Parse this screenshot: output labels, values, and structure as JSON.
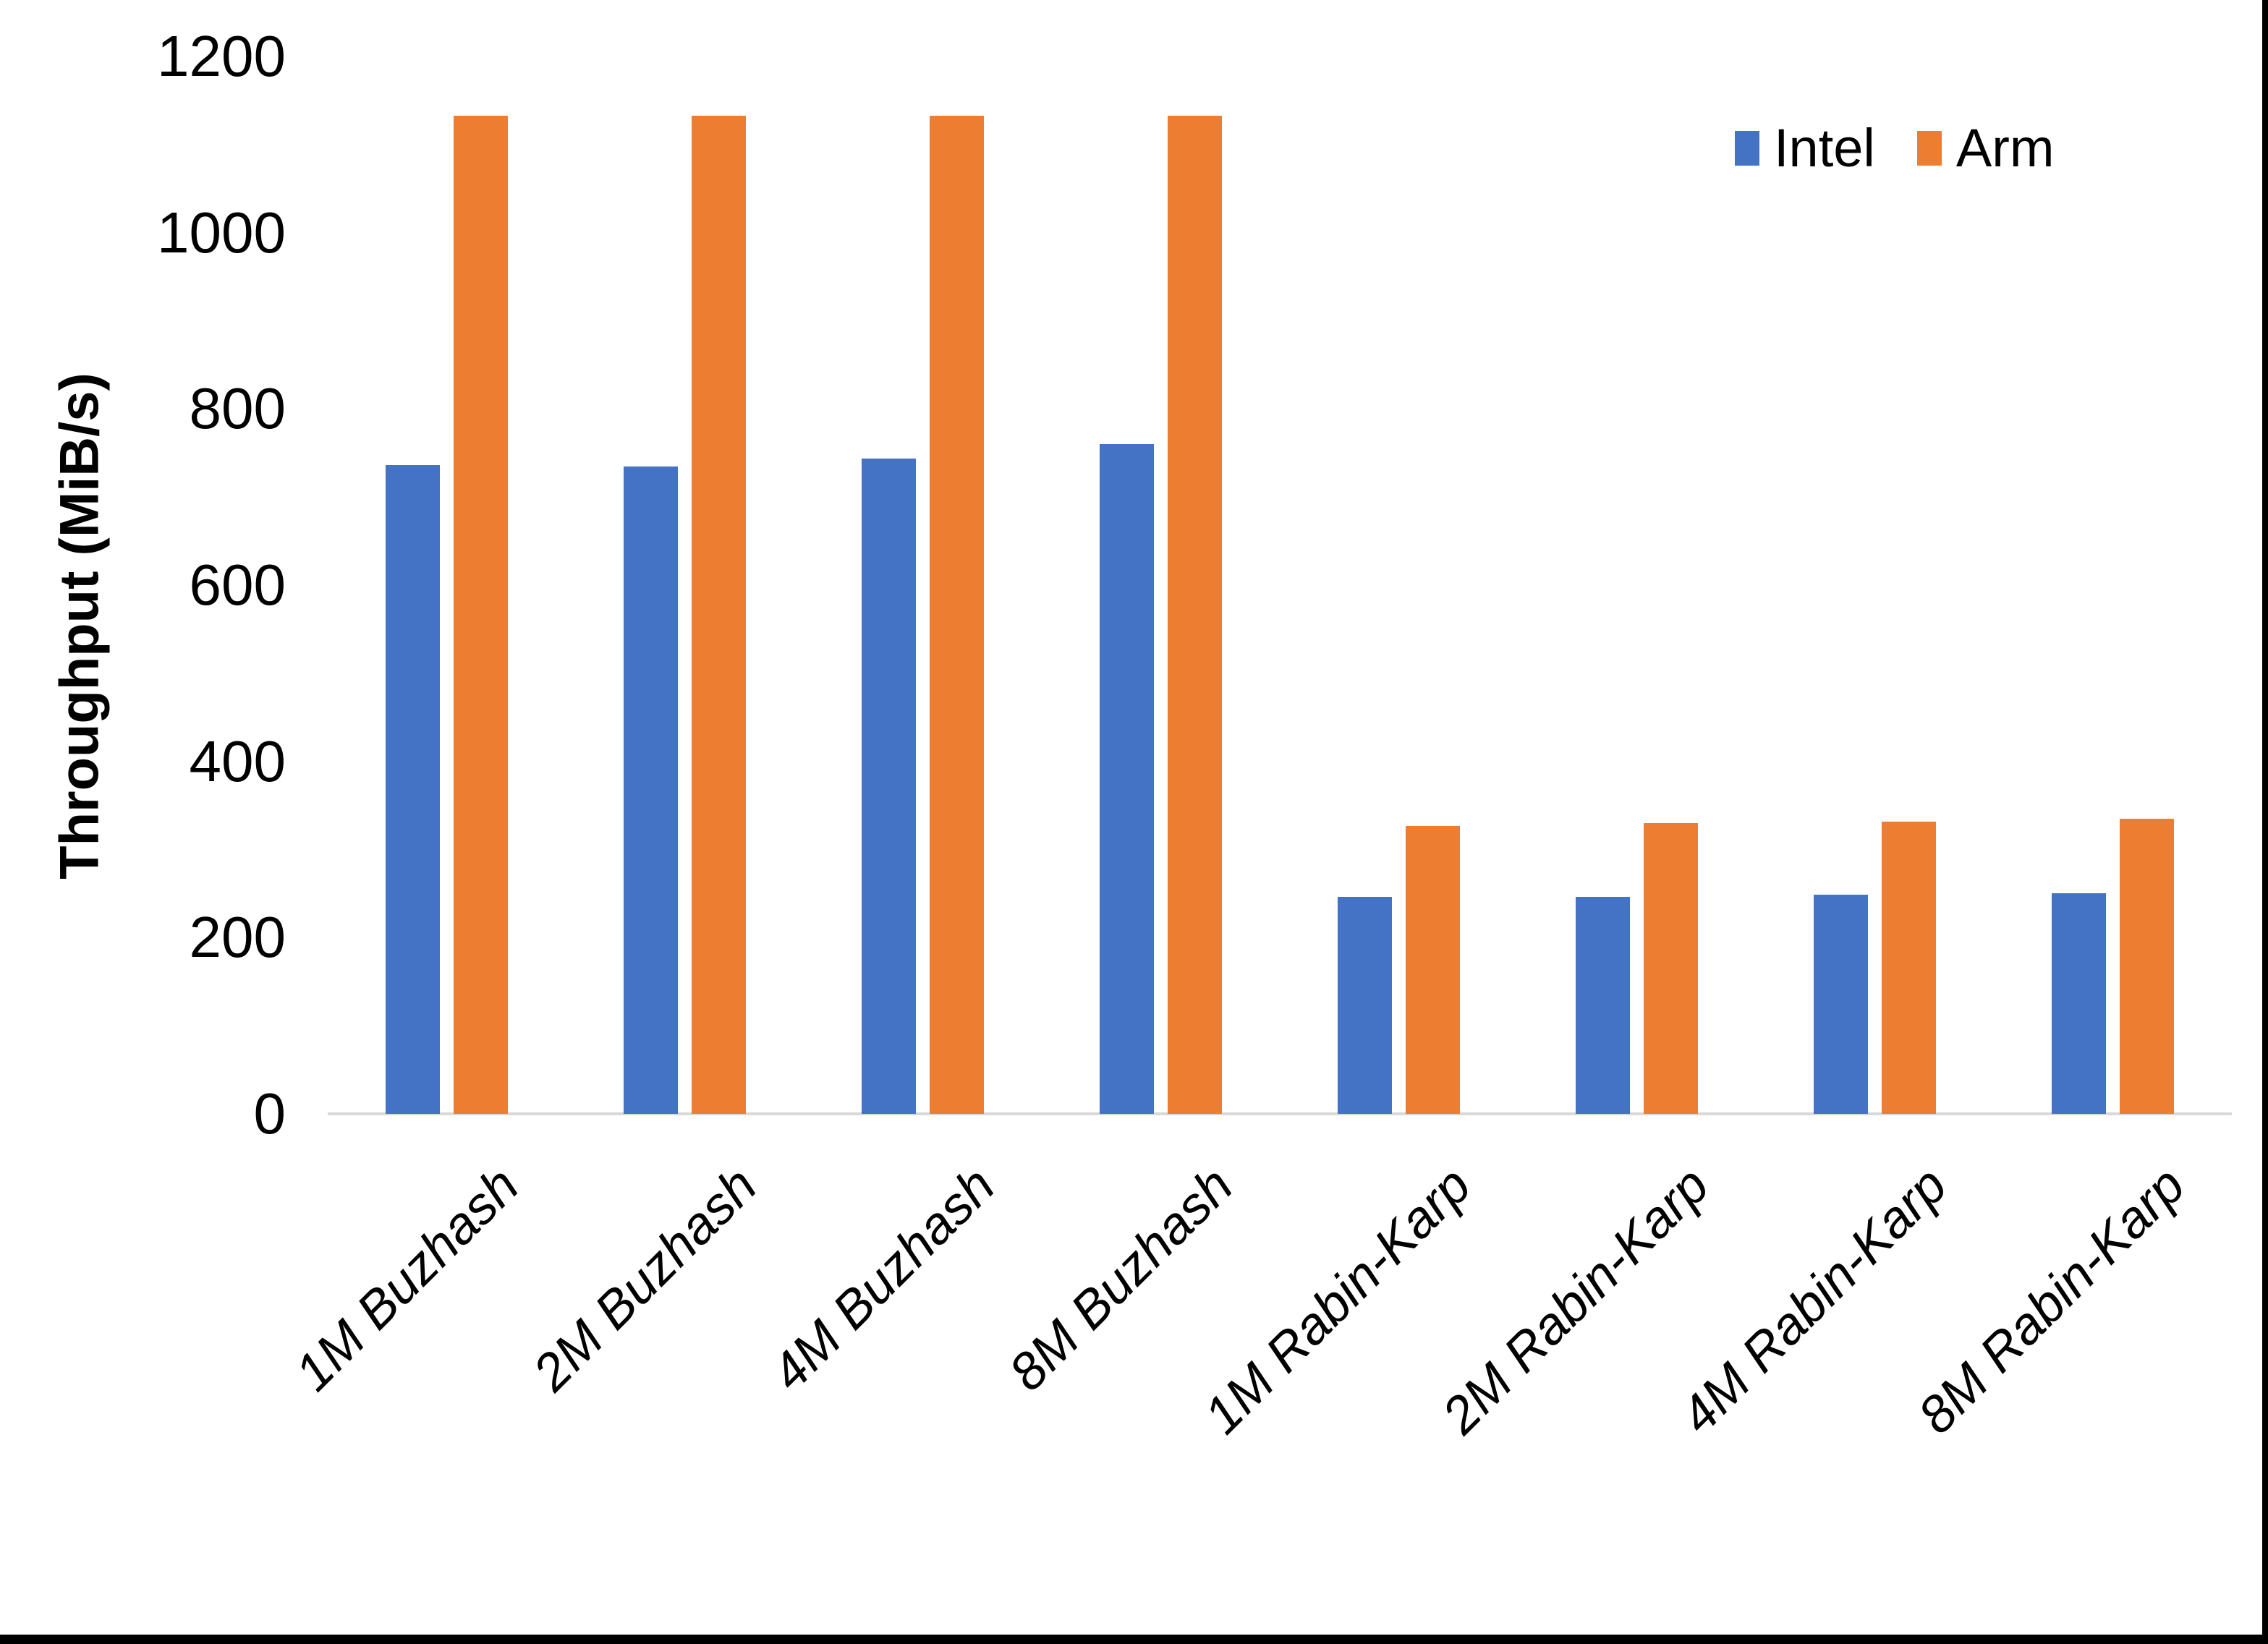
{
  "chart_data": {
    "type": "bar",
    "title": "",
    "xlabel": "",
    "ylabel": "Throughput (MiB/s)",
    "ylim": [
      0,
      1200
    ],
    "yticks": [
      0,
      200,
      400,
      600,
      800,
      1000,
      1200
    ],
    "grid": false,
    "legend_position": "top-right",
    "categories": [
      "1M Buzhash",
      "2M Buzhash",
      "4M Buzhash",
      "8M Buzhash",
      "1M Rabin-Karp",
      "2M Rabin-Karp",
      "4M Rabin-Karp",
      "8M Rabin-Karp"
    ],
    "series": [
      {
        "name": "Intel",
        "color": "#4472C4",
        "values": [
          736,
          735,
          744,
          760,
          246,
          246,
          249,
          250
        ]
      },
      {
        "name": "Arm",
        "color": "#ED7D31",
        "values": [
          1133,
          1133,
          1133,
          1133,
          327,
          330,
          332,
          335
        ]
      }
    ]
  },
  "colors": {
    "axis_line": "#d9d9d9",
    "text": "#000000",
    "frame_border": "#000000",
    "background": "#ffffff"
  }
}
